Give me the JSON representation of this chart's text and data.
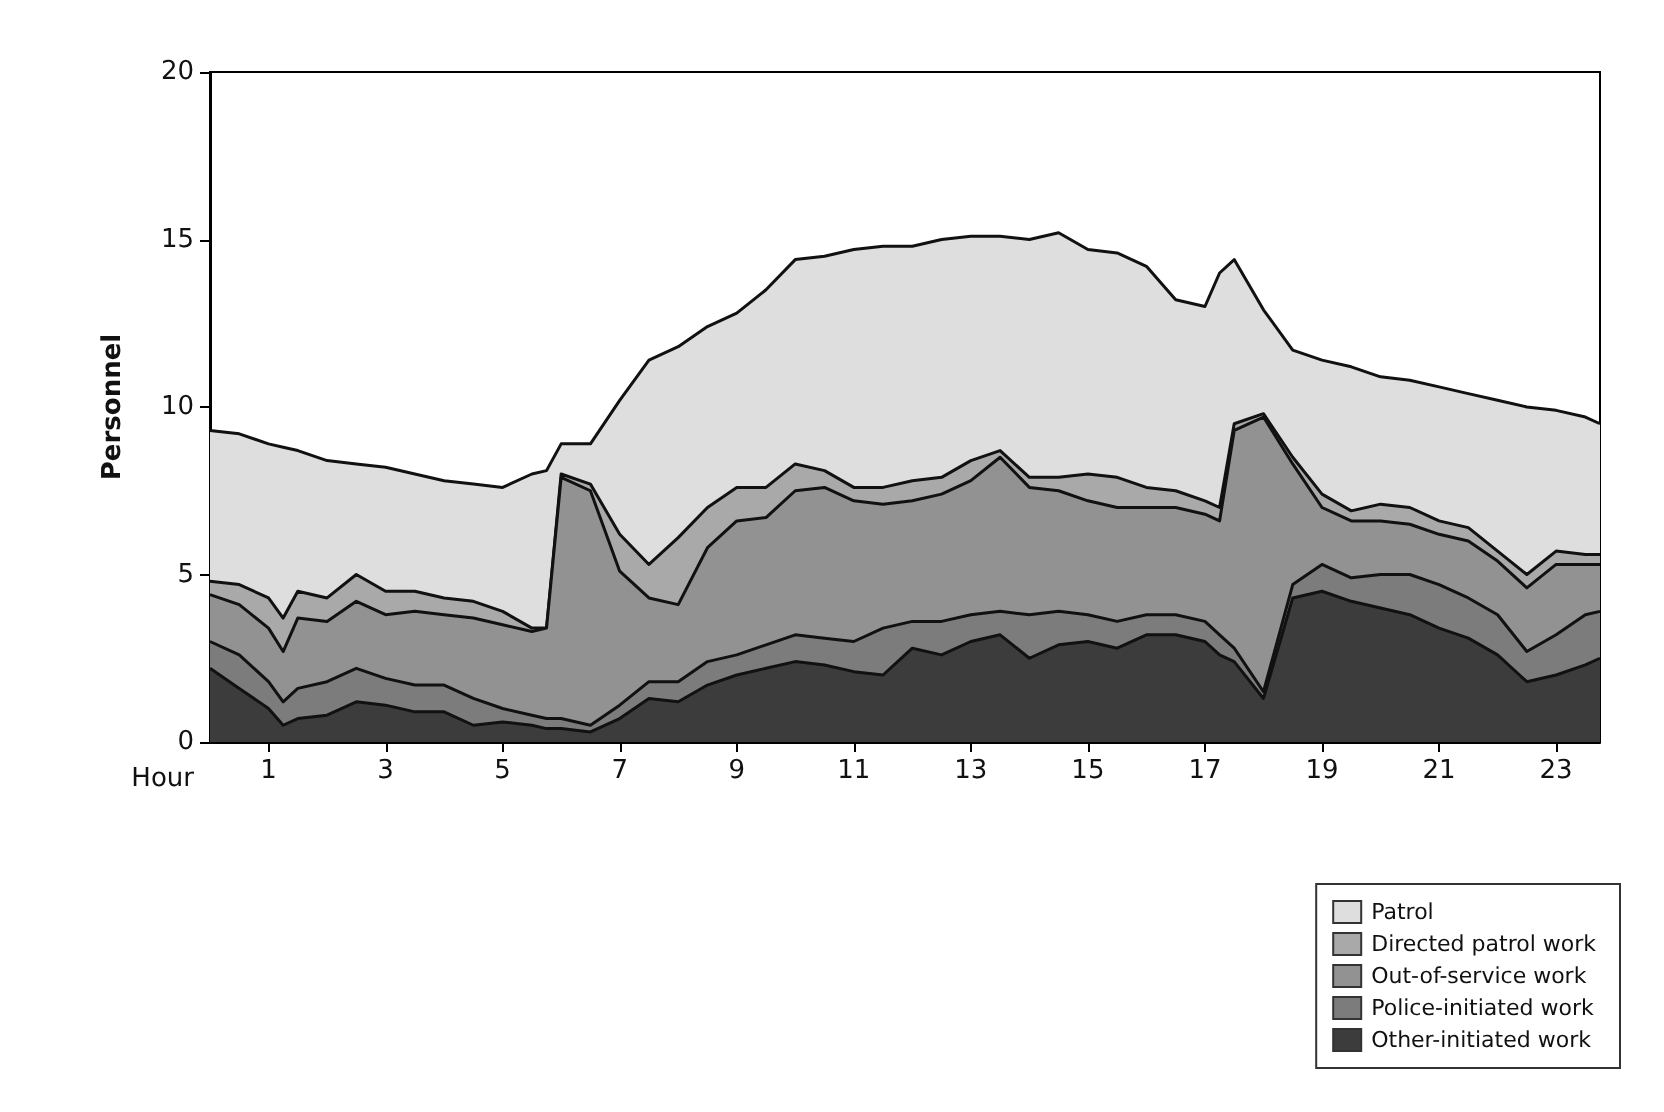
{
  "chart_data": {
    "type": "area",
    "stacked": true,
    "ylabel": "Personnel",
    "xlabel": "Hour",
    "x": [
      0,
      0.5,
      1,
      1.25,
      1.5,
      2,
      2.5,
      3,
      3.5,
      4,
      4.5,
      5,
      5.5,
      5.75,
      6,
      6.5,
      7,
      7.5,
      8,
      8.5,
      9,
      9.5,
      10,
      10.5,
      11,
      11.5,
      12,
      12.5,
      13,
      13.5,
      14,
      14.5,
      15,
      15.5,
      16,
      16.5,
      17,
      17.25,
      17.5,
      18,
      18.5,
      19,
      19.5,
      20,
      20.5,
      21,
      21.5,
      22,
      22.5,
      23,
      23.5,
      23.75
    ],
    "xlim": [
      0,
      23.75
    ],
    "xticks": [
      1,
      3,
      5,
      7,
      9,
      11,
      13,
      15,
      17,
      19,
      21,
      23
    ],
    "ylim": [
      0,
      20
    ],
    "yticks": [
      0,
      5,
      10,
      15,
      20
    ],
    "grid": false,
    "legend": "bottom right",
    "marker": "none",
    "line_style": "solid",
    "series": [
      {
        "name": "Other-initiated work",
        "color": "#3c3c3c",
        "values": [
          2.2,
          1.6,
          1.0,
          0.5,
          0.7,
          0.8,
          1.2,
          1.1,
          0.9,
          0.9,
          0.5,
          0.6,
          0.5,
          0.4,
          0.4,
          0.3,
          0.7,
          1.3,
          1.2,
          1.7,
          2.0,
          2.2,
          2.4,
          2.3,
          2.1,
          2.0,
          2.8,
          2.6,
          3.0,
          3.2,
          2.5,
          2.9,
          3.0,
          2.8,
          3.2,
          3.2,
          3.0,
          2.6,
          2.4,
          1.3,
          4.3,
          4.5,
          4.2,
          4.0,
          3.8,
          3.4,
          3.1,
          2.6,
          1.8,
          2.0,
          2.3,
          2.5
        ]
      },
      {
        "name": "Police-initiated work",
        "color": "#7c7c7c",
        "values": [
          0.8,
          1.0,
          0.8,
          0.7,
          0.9,
          1.0,
          1.0,
          0.8,
          0.8,
          0.8,
          0.8,
          0.4,
          0.3,
          0.3,
          0.3,
          0.2,
          0.4,
          0.5,
          0.6,
          0.7,
          0.6,
          0.7,
          0.8,
          0.8,
          0.9,
          1.4,
          0.8,
          1.0,
          0.8,
          0.7,
          1.3,
          1.0,
          0.8,
          0.8,
          0.6,
          0.6,
          0.6,
          0.6,
          0.4,
          0.2,
          0.4,
          0.8,
          0.7,
          1.0,
          1.2,
          1.3,
          1.2,
          1.2,
          0.9,
          1.2,
          1.5,
          1.4
        ]
      },
      {
        "name": "Out-of-service work",
        "color": "#929292",
        "values": [
          1.4,
          1.5,
          1.6,
          1.5,
          2.1,
          1.8,
          2.0,
          1.9,
          2.2,
          2.1,
          2.4,
          2.5,
          2.5,
          2.7,
          7.2,
          7.0,
          4.0,
          2.5,
          2.3,
          3.4,
          4.0,
          3.8,
          4.3,
          4.5,
          4.2,
          3.7,
          3.6,
          3.8,
          4.0,
          4.6,
          3.8,
          3.6,
          3.4,
          3.4,
          3.2,
          3.2,
          3.2,
          3.4,
          6.5,
          8.2,
          3.6,
          1.7,
          1.7,
          1.6,
          1.5,
          1.5,
          1.7,
          1.6,
          1.9,
          2.1,
          1.5,
          1.4
        ]
      },
      {
        "name": "Directed patrol work",
        "color": "#a9a9a9",
        "values": [
          0.4,
          0.6,
          0.9,
          1.0,
          0.8,
          0.7,
          0.8,
          0.7,
          0.6,
          0.5,
          0.5,
          0.4,
          0.1,
          0.0,
          0.1,
          0.2,
          1.1,
          1.0,
          2.0,
          1.2,
          1.0,
          0.9,
          0.8,
          0.5,
          0.4,
          0.5,
          0.6,
          0.5,
          0.6,
          0.2,
          0.3,
          0.4,
          0.8,
          0.9,
          0.6,
          0.5,
          0.4,
          0.4,
          0.2,
          0.1,
          0.2,
          0.4,
          0.3,
          0.5,
          0.5,
          0.4,
          0.4,
          0.3,
          0.4,
          0.4,
          0.3,
          0.3
        ]
      },
      {
        "name": "Patrol",
        "color": "#dedede",
        "values": [
          4.5,
          4.5,
          4.6,
          5.1,
          4.2,
          4.1,
          3.3,
          3.7,
          3.5,
          3.5,
          3.5,
          3.7,
          4.6,
          4.7,
          0.9,
          1.2,
          4.0,
          6.1,
          5.7,
          5.4,
          5.2,
          5.9,
          6.1,
          6.4,
          7.1,
          7.2,
          7.0,
          7.1,
          6.7,
          6.4,
          7.1,
          7.3,
          6.7,
          6.7,
          6.6,
          5.7,
          5.8,
          7.0,
          4.9,
          3.1,
          3.2,
          4.0,
          4.3,
          3.8,
          3.8,
          4.0,
          4.0,
          4.5,
          5.0,
          4.2,
          4.1,
          3.9
        ]
      }
    ]
  }
}
